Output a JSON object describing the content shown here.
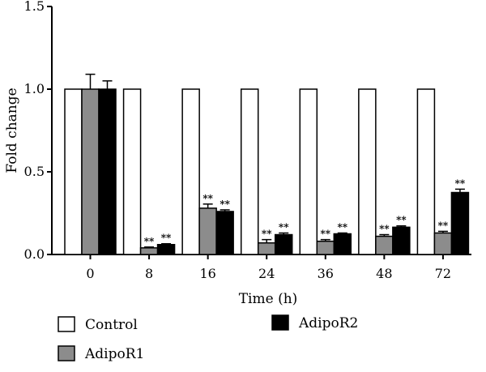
{
  "chart_data": {
    "type": "bar",
    "title": "",
    "xlabel": "Time (h)",
    "ylabel": "Fold change",
    "ylim": [
      0,
      1.5
    ],
    "yticks": [
      "0.0",
      "0.5",
      "1.0",
      "1.5"
    ],
    "categories": [
      "0",
      "8",
      "16",
      "24",
      "36",
      "48",
      "72"
    ],
    "series": [
      {
        "name": "Control",
        "color": "#ffffff",
        "values": [
          1.0,
          1.0,
          1.0,
          1.0,
          1.0,
          1.0,
          1.0
        ],
        "errors": [
          0,
          0,
          0,
          0,
          0,
          0,
          0
        ],
        "significance": [
          "",
          "",
          "",
          "",
          "",
          "",
          ""
        ]
      },
      {
        "name": "AdipoR1",
        "color": "#8c8c8c",
        "values": [
          1.0,
          0.04,
          0.28,
          0.07,
          0.08,
          0.11,
          0.13
        ],
        "errors": [
          0.09,
          0.005,
          0.025,
          0.02,
          0.01,
          0.01,
          0.01
        ],
        "significance": [
          "",
          "**",
          "**",
          "**",
          "**",
          "**",
          "**"
        ]
      },
      {
        "name": "AdipoR2",
        "color": "#000000",
        "values": [
          1.0,
          0.06,
          0.26,
          0.12,
          0.125,
          0.165,
          0.375
        ],
        "errors": [
          0.05,
          0.005,
          0.01,
          0.01,
          0.005,
          0.008,
          0.02
        ],
        "significance": [
          "",
          "**",
          "**",
          "**",
          "**",
          "**",
          "**"
        ]
      }
    ],
    "legend": {
      "placement": "bottom",
      "entries": [
        "Control",
        "AdipoR1",
        "AdipoR2"
      ]
    }
  }
}
